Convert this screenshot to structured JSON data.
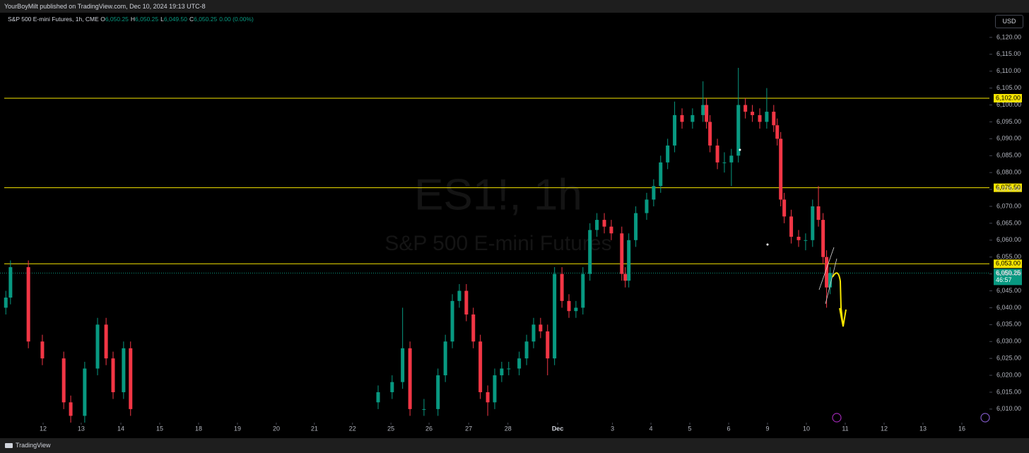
{
  "header": {
    "text": "YourBoyMilt published on TradingView.com, Dec 10, 2024 19:13 UTC-8"
  },
  "footer": {
    "brand": "TradingView"
  },
  "chart_data": {
    "type": "candlestick",
    "symbol": "S&P 500 E-mini Futures, 1h, CME",
    "legend": [
      {
        "key": "O",
        "value": "6,050.25"
      },
      {
        "key": "H",
        "value": "6,050.25"
      },
      {
        "key": "L",
        "value": "6,049.50"
      },
      {
        "key": "C",
        "value": "6,050.25"
      }
    ],
    "change": "0.00 (0.00%)",
    "watermark": {
      "ticker": "ES1!, 1h",
      "name": "S&P 500 E-mini Futures"
    },
    "currency": "USD",
    "up_color": "#089981",
    "down_color": "#f23645",
    "ylim": [
      6006,
      6127.3
    ],
    "yticks": [
      {
        "value": 6010,
        "label": "6,010.00"
      },
      {
        "value": 6015,
        "label": "6,015.00"
      },
      {
        "value": 6020,
        "label": "6,020.00"
      },
      {
        "value": 6025,
        "label": "6,025.00"
      },
      {
        "value": 6030,
        "label": "6,030.00"
      },
      {
        "value": 6035,
        "label": "6,035.00"
      },
      {
        "value": 6040,
        "label": "6,040.00"
      },
      {
        "value": 6045,
        "label": "6,045.00"
      },
      {
        "value": 6050,
        "label": "6,050.00"
      },
      {
        "value": 6055,
        "label": "6,055.00"
      },
      {
        "value": 6060,
        "label": "6,060.00"
      },
      {
        "value": 6065,
        "label": "6,065.00"
      },
      {
        "value": 6070,
        "label": "6,070.00"
      },
      {
        "value": 6075,
        "label": "6,075.00"
      },
      {
        "value": 6080,
        "label": "6,080.00"
      },
      {
        "value": 6085,
        "label": "6,085.00"
      },
      {
        "value": 6090,
        "label": "6,090.00"
      },
      {
        "value": 6095,
        "label": "6,095.00"
      },
      {
        "value": 6100,
        "label": "6,100.00"
      },
      {
        "value": 6105,
        "label": "6,105.00"
      },
      {
        "value": 6110,
        "label": "6,110.00"
      },
      {
        "value": 6115,
        "label": "6,115.00"
      },
      {
        "value": 6120,
        "label": "6,120.00"
      }
    ],
    "xlim": [
      -1.11,
      24.35
    ],
    "xticks": [
      {
        "value": 0,
        "label": "12"
      },
      {
        "value": 0.98,
        "label": "13"
      },
      {
        "value": 2.0,
        "label": "14"
      },
      {
        "value": 3.0,
        "label": "15"
      },
      {
        "value": 4.0,
        "label": "18"
      },
      {
        "value": 5.0,
        "label": "19"
      },
      {
        "value": 6.0,
        "label": "20"
      },
      {
        "value": 6.98,
        "label": "21"
      },
      {
        "value": 7.96,
        "label": "22"
      },
      {
        "value": 8.95,
        "label": "25"
      },
      {
        "value": 9.93,
        "label": "26"
      },
      {
        "value": 10.95,
        "label": "27"
      },
      {
        "value": 11.96,
        "label": "28"
      },
      {
        "value": 13.24,
        "label": "Dec"
      },
      {
        "value": 14.65,
        "label": "3"
      },
      {
        "value": 15.64,
        "label": "4"
      },
      {
        "value": 16.64,
        "label": "5"
      },
      {
        "value": 17.64,
        "label": "6"
      },
      {
        "value": 18.64,
        "label": "9"
      },
      {
        "value": 19.64,
        "label": "10"
      },
      {
        "value": 20.64,
        "label": "11"
      },
      {
        "value": 21.64,
        "label": "12"
      },
      {
        "value": 22.64,
        "label": "13"
      },
      {
        "value": 23.64,
        "label": "16"
      }
    ],
    "levels": [
      {
        "value": 6102,
        "label": "6,102.00"
      },
      {
        "value": 6075.5,
        "label": "6,075.50"
      },
      {
        "value": 6053,
        "label": "6,053.00"
      }
    ],
    "level_color": "#f5e400",
    "last_price": {
      "value": 6050.25,
      "label": "6,050.25",
      "countdown": "46:57"
    },
    "x": [
      -0.96,
      -0.84,
      -0.38,
      -0.02,
      0.53,
      0.71,
      1.07,
      1.4,
      1.62,
      1.8,
      2.07,
      2.25,
      8.62,
      8.98,
      9.25,
      9.44,
      9.8,
      10.16,
      10.35,
      10.53,
      10.71,
      10.89,
      11.07,
      11.25,
      11.44,
      11.62,
      11.8,
      11.98,
      12.25,
      12.44,
      12.62,
      12.8,
      12.98,
      13.16,
      13.35,
      13.53,
      13.71,
      13.89,
      14.07,
      14.25,
      14.44,
      14.62,
      14.89,
      14.98,
      15.07,
      15.25,
      15.53,
      15.71,
      15.89,
      16.07,
      16.25,
      16.44,
      16.71,
      16.98,
      17.07,
      17.16,
      17.35,
      17.53,
      17.71,
      17.89,
      18.07,
      18.25,
      18.44,
      18.62,
      18.8,
      18.89,
      18.98,
      19.07,
      19.25,
      19.44,
      19.62,
      19.8,
      19.95,
      20.07,
      20.16,
      20.25
    ],
    "open": [
      6040,
      6043,
      6052,
      6030,
      6025,
      6012,
      6008,
      6022,
      6035,
      6025,
      6015,
      6028,
      6012,
      6015,
      6018,
      6028,
      6010,
      6010,
      6020,
      6030,
      6042,
      6045,
      6038,
      6030,
      6015,
      6012,
      6020,
      6022,
      6022,
      6025,
      6030,
      6035,
      6033,
      6025,
      6050,
      6042,
      6039,
      6040,
      6050,
      6063,
      6066,
      6064,
      6062,
      6050,
      6048,
      6060,
      6068,
      6072,
      6076,
      6083,
      6088,
      6097,
      6095,
      6097,
      6100,
      6095,
      6088,
      6083,
      6083,
      6085,
      6100,
      6098,
      6097,
      6095,
      6098,
      6094,
      6090,
      6072,
      6067,
      6061,
      6060,
      6060,
      6070,
      6066,
      6055,
      6046
    ],
    "high": [
      6045,
      6054,
      6054,
      6032,
      6027,
      6014,
      6024,
      6037,
      6037,
      6027,
      6030,
      6030,
      6017,
      6020,
      6040,
      6030,
      6013,
      6022,
      6032,
      6044,
      6047,
      6047,
      6040,
      6032,
      6017,
      6022,
      6024,
      6024,
      6027,
      6032,
      6037,
      6037,
      6035,
      6052,
      6052,
      6044,
      6042,
      6052,
      6065,
      6068,
      6068,
      6066,
      6064,
      6052,
      6062,
      6070,
      6074,
      6078,
      6085,
      6090,
      6101,
      6099,
      6099,
      6107,
      6102,
      6097,
      6090,
      6086,
      6087,
      6111,
      6102,
      6100,
      6099,
      6105,
      6100,
      6096,
      6092,
      6074,
      6069,
      6063,
      6062,
      6072,
      6076,
      6068,
      6057,
      6052
    ],
    "low": [
      6038,
      6041,
      6028,
      6023,
      6010,
      6006,
      6006,
      6020,
      6023,
      6013,
      6013,
      6008,
      6010,
      6013,
      6016,
      6008,
      6008,
      6008,
      6018,
      6028,
      6040,
      6036,
      6028,
      6013,
      6008,
      6010,
      6018,
      6020,
      6020,
      6023,
      6028,
      6031,
      6020,
      6023,
      6040,
      6037,
      6037,
      6038,
      6048,
      6061,
      6062,
      6060,
      6048,
      6046,
      6046,
      6058,
      6066,
      6070,
      6074,
      6081,
      6086,
      6093,
      6093,
      6095,
      6093,
      6086,
      6081,
      6080,
      6076,
      6083,
      6096,
      6095,
      6093,
      6093,
      6092,
      6088,
      6070,
      6065,
      6059,
      6058,
      6057,
      6058,
      6064,
      6053,
      6040,
      6044
    ],
    "close": [
      6043,
      6052,
      6030,
      6025,
      6012,
      6008,
      6022,
      6035,
      6025,
      6015,
      6028,
      6010,
      6015,
      6018,
      6028,
      6010,
      6010,
      6020,
      6030,
      6042,
      6045,
      6038,
      6030,
      6015,
      6012,
      6020,
      6022,
      6022,
      6025,
      6030,
      6035,
      6033,
      6025,
      6050,
      6042,
      6039,
      6040,
      6050,
      6063,
      6066,
      6064,
      6062,
      6050,
      6048,
      6060,
      6068,
      6072,
      6076,
      6083,
      6088,
      6097,
      6095,
      6097,
      6100,
      6095,
      6088,
      6083,
      6083,
      6085,
      6100,
      6098,
      6097,
      6095,
      6098,
      6094,
      6090,
      6072,
      6067,
      6061,
      6060,
      6060,
      6070,
      6066,
      6055,
      6046,
      6050.25
    ]
  }
}
